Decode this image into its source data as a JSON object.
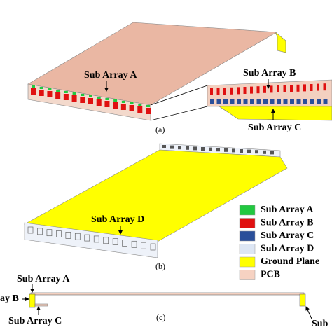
{
  "panels": [
    {
      "label": "(a)",
      "annotations": [
        "Sub Array A",
        "Sub Array B",
        "Sub Array C"
      ]
    },
    {
      "label": "(b)",
      "annotations": [
        "Sub Array D"
      ]
    },
    {
      "label": "(c)",
      "annotations": [
        "Sub Array A",
        "ay B",
        "Sub Array C",
        "Sub"
      ]
    }
  ],
  "legend": [
    {
      "label": "Sub Array A",
      "color": "#22c840"
    },
    {
      "label": "Sub Array B",
      "color": "#e01010"
    },
    {
      "label": "Sub Array C",
      "color": "#2a4f9a"
    },
    {
      "label": "Sub Array D",
      "color": "#dde6f4"
    },
    {
      "label": "Ground Plane",
      "color": "#ffff00"
    },
    {
      "label": "PCB",
      "color": "#f6d2c2"
    }
  ]
}
